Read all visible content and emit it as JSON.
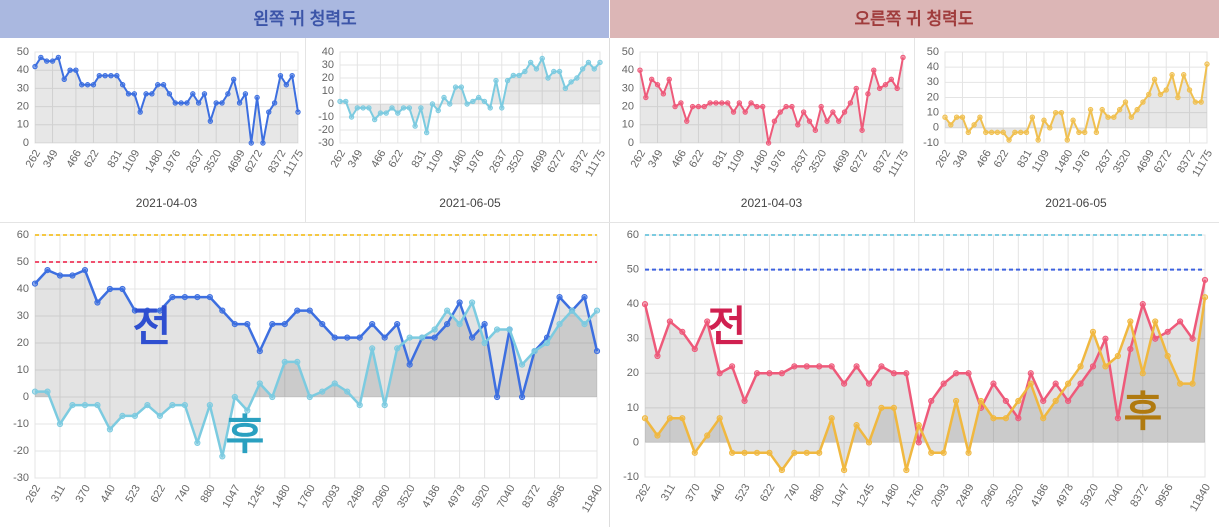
{
  "headers": [
    "왼쪽 귀 청력도",
    "오른쪽 귀 청력도"
  ],
  "chart_data": [
    {
      "type": "line",
      "xlabel": "2021-04-03",
      "categories": [
        "262",
        null,
        null,
        "349",
        null,
        null,
        null,
        "466",
        null,
        null,
        "622",
        null,
        null,
        null,
        "831",
        null,
        null,
        "1109",
        null,
        null,
        null,
        "1480",
        null,
        null,
        "1976",
        null,
        null,
        null,
        "2637",
        null,
        null,
        "3520",
        null,
        null,
        null,
        "4699",
        null,
        null,
        "6272",
        null,
        null,
        null,
        "8372",
        null,
        null,
        "11175"
      ],
      "series": [
        {
          "color": "#3d6fe0",
          "values": [
            42,
            47,
            45,
            45,
            47,
            35,
            40,
            40,
            32,
            32,
            32,
            37,
            37,
            37,
            37,
            32,
            27,
            27,
            17,
            27,
            27,
            32,
            32,
            27,
            22,
            22,
            22,
            27,
            22,
            27,
            12,
            22,
            22,
            27,
            35,
            22,
            27,
            0,
            25,
            0,
            17,
            22,
            37,
            32,
            37,
            17
          ]
        }
      ],
      "ylim": [
        0,
        50
      ],
      "yticks": [
        0,
        10,
        20,
        30,
        40,
        50
      ],
      "grid": true
    },
    {
      "type": "line",
      "xlabel": "2021-06-05",
      "categories": [
        "262",
        null,
        null,
        "349",
        null,
        null,
        null,
        "466",
        null,
        null,
        "622",
        null,
        null,
        null,
        "831",
        null,
        null,
        "1109",
        null,
        null,
        null,
        "1480",
        null,
        null,
        "1976",
        null,
        null,
        null,
        "2637",
        null,
        null,
        "3520",
        null,
        null,
        null,
        "4699",
        null,
        null,
        "6272",
        null,
        null,
        null,
        "8372",
        null,
        null,
        "11175"
      ],
      "series": [
        {
          "color": "#7ccbe0",
          "values": [
            2,
            2,
            -10,
            -3,
            -3,
            -3,
            -12,
            -7,
            -7,
            -3,
            -7,
            -3,
            -3,
            -17,
            -3,
            -22,
            0,
            -5,
            5,
            0,
            13,
            13,
            0,
            2,
            5,
            2,
            -3,
            18,
            -3,
            18,
            22,
            22,
            25,
            32,
            27,
            35,
            20,
            25,
            25,
            12,
            17,
            20,
            27,
            32,
            27,
            32
          ]
        }
      ],
      "ylim": [
        -30,
        40
      ],
      "yticks": [
        -30,
        -20,
        -10,
        0,
        10,
        20,
        30,
        40
      ],
      "grid": true
    },
    {
      "type": "line",
      "xlabel": "2021-04-03",
      "categories": [
        "262",
        null,
        null,
        "349",
        null,
        null,
        null,
        "466",
        null,
        null,
        "622",
        null,
        null,
        null,
        "831",
        null,
        null,
        "1109",
        null,
        null,
        null,
        "1480",
        null,
        null,
        "1976",
        null,
        null,
        null,
        "2637",
        null,
        null,
        "3520",
        null,
        null,
        null,
        "4699",
        null,
        null,
        "6272",
        null,
        null,
        null,
        "8372",
        null,
        null,
        "11175"
      ],
      "series": [
        {
          "color": "#ee5a7a",
          "values": [
            40,
            25,
            35,
            32,
            27,
            35,
            20,
            22,
            12,
            20,
            20,
            20,
            22,
            22,
            22,
            22,
            17,
            22,
            17,
            22,
            20,
            20,
            0,
            12,
            17,
            20,
            20,
            10,
            17,
            12,
            7,
            20,
            12,
            17,
            12,
            17,
            22,
            30,
            7,
            27,
            40,
            30,
            32,
            35,
            30,
            47
          ]
        }
      ],
      "ylim": [
        0,
        50
      ],
      "yticks": [
        0,
        10,
        20,
        30,
        40,
        50
      ],
      "grid": true
    },
    {
      "type": "line",
      "xlabel": "2021-06-05",
      "categories": [
        "262",
        null,
        null,
        "349",
        null,
        null,
        null,
        "466",
        null,
        null,
        "622",
        null,
        null,
        null,
        "831",
        null,
        null,
        "1109",
        null,
        null,
        null,
        "1480",
        null,
        null,
        "1976",
        null,
        null,
        null,
        "2637",
        null,
        null,
        "3520",
        null,
        null,
        null,
        "4699",
        null,
        null,
        "6272",
        null,
        null,
        null,
        "8372",
        null,
        null,
        "11175"
      ],
      "series": [
        {
          "color": "#f0c050",
          "values": [
            7,
            2,
            7,
            7,
            -3,
            2,
            7,
            -3,
            -3,
            -3,
            -3,
            -8,
            -3,
            -3,
            -3,
            7,
            -8,
            5,
            0,
            10,
            10,
            -8,
            5,
            -3,
            -3,
            12,
            -3,
            12,
            7,
            7,
            12,
            17,
            7,
            12,
            17,
            22,
            32,
            22,
            25,
            35,
            20,
            35,
            25,
            17,
            17,
            42
          ]
        }
      ],
      "ylim": [
        -10,
        50
      ],
      "yticks": [
        -10,
        0,
        10,
        20,
        30,
        40,
        50
      ],
      "grid": true
    },
    {
      "type": "line",
      "categories": [
        "262",
        null,
        "311",
        null,
        "370",
        null,
        "440",
        null,
        "523",
        null,
        "622",
        null,
        "740",
        null,
        "880",
        null,
        "1047",
        null,
        "1245",
        null,
        "1480",
        null,
        "1760",
        null,
        "2093",
        null,
        "2489",
        null,
        "2960",
        null,
        "3520",
        null,
        "4186",
        null,
        "4978",
        null,
        "5920",
        null,
        "7040",
        null,
        "8372",
        null,
        "9956",
        null,
        null,
        "11840"
      ],
      "series": [
        {
          "color": "#3d6fe0",
          "values": [
            42,
            47,
            45,
            45,
            47,
            35,
            40,
            40,
            32,
            32,
            32,
            37,
            37,
            37,
            37,
            32,
            27,
            27,
            17,
            27,
            27,
            32,
            32,
            27,
            22,
            22,
            22,
            27,
            22,
            27,
            12,
            22,
            22,
            27,
            35,
            22,
            27,
            0,
            25,
            0,
            17,
            22,
            37,
            32,
            37,
            17
          ]
        },
        {
          "color": "#7ccbe0",
          "values": [
            2,
            2,
            -10,
            -3,
            -3,
            -3,
            -12,
            -7,
            -7,
            -3,
            -7,
            -3,
            -3,
            -17,
            -3,
            -22,
            0,
            -5,
            5,
            0,
            13,
            13,
            0,
            2,
            5,
            2,
            -3,
            18,
            -3,
            18,
            22,
            22,
            25,
            32,
            27,
            35,
            20,
            25,
            25,
            12,
            17,
            20,
            27,
            32,
            27,
            32
          ]
        }
      ],
      "ref_lines": [
        {
          "value": 50,
          "color": "#f0506e"
        },
        {
          "value": 60,
          "color": "#f5c842"
        }
      ],
      "annotations": [
        {
          "text": "전",
          "color": "#2f4fd0"
        },
        {
          "text": "후",
          "color": "#2aa0c0"
        }
      ],
      "ylim": [
        -30,
        60
      ],
      "yticks": [
        -30,
        -20,
        -10,
        0,
        10,
        20,
        30,
        40,
        50,
        60
      ],
      "grid": true
    },
    {
      "type": "line",
      "categories": [
        "262",
        null,
        "311",
        null,
        "370",
        null,
        "440",
        null,
        "523",
        null,
        "622",
        null,
        "740",
        null,
        "880",
        null,
        "1047",
        null,
        "1245",
        null,
        "1480",
        null,
        "1760",
        null,
        "2093",
        null,
        "2489",
        null,
        "2960",
        null,
        "3520",
        null,
        "4186",
        null,
        "4978",
        null,
        "5920",
        null,
        "7040",
        null,
        "8372",
        null,
        "9956",
        null,
        null,
        "11840"
      ],
      "series": [
        {
          "color": "#ee5a7a",
          "values": [
            40,
            25,
            35,
            32,
            27,
            35,
            20,
            22,
            12,
            20,
            20,
            20,
            22,
            22,
            22,
            22,
            17,
            22,
            17,
            22,
            20,
            20,
            0,
            12,
            17,
            20,
            20,
            10,
            17,
            12,
            7,
            20,
            12,
            17,
            12,
            17,
            22,
            30,
            7,
            27,
            40,
            30,
            32,
            35,
            30,
            47
          ]
        },
        {
          "color": "#f0b840",
          "values": [
            7,
            2,
            7,
            7,
            -3,
            2,
            7,
            -3,
            -3,
            -3,
            -3,
            -8,
            -3,
            -3,
            -3,
            7,
            -8,
            5,
            0,
            10,
            10,
            -8,
            5,
            -3,
            -3,
            12,
            -3,
            12,
            7,
            7,
            12,
            17,
            7,
            12,
            17,
            22,
            32,
            22,
            25,
            35,
            20,
            35,
            25,
            17,
            17,
            42
          ]
        }
      ],
      "ref_lines": [
        {
          "value": 50,
          "color": "#3d62e0"
        },
        {
          "value": 60,
          "color": "#7ccbe0"
        }
      ],
      "annotations": [
        {
          "text": "전",
          "color": "#d02050"
        },
        {
          "text": "후",
          "color": "#b07a10"
        }
      ],
      "ylim": [
        -10,
        60
      ],
      "yticks": [
        -10,
        0,
        10,
        20,
        30,
        40,
        50,
        60
      ],
      "grid": true
    }
  ]
}
